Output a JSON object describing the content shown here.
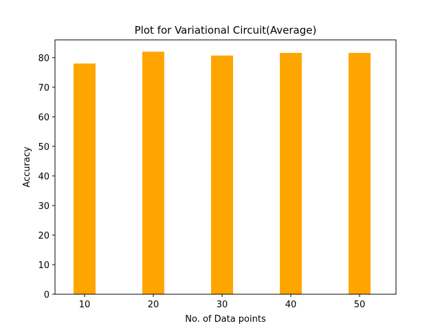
{
  "chart_data": {
    "type": "bar",
    "title": "Plot for Variational Circuit(Average)",
    "xlabel": "No. of Data points",
    "ylabel": "Accuracy",
    "categories": [
      "10",
      "20",
      "30",
      "40",
      "50"
    ],
    "x": [
      10,
      20,
      30,
      40,
      50
    ],
    "values": [
      78.0,
      82.0,
      80.7,
      81.6,
      81.6
    ],
    "xlim": [
      5.7,
      55.3
    ],
    "ylim": [
      0,
      86
    ],
    "xticks": [
      10,
      20,
      30,
      40,
      50
    ],
    "yticks": [
      0,
      10,
      20,
      30,
      40,
      50,
      60,
      70,
      80
    ],
    "bar_width": 3.2,
    "bar_color": "#ffa500",
    "grid": false,
    "legend": "none"
  }
}
